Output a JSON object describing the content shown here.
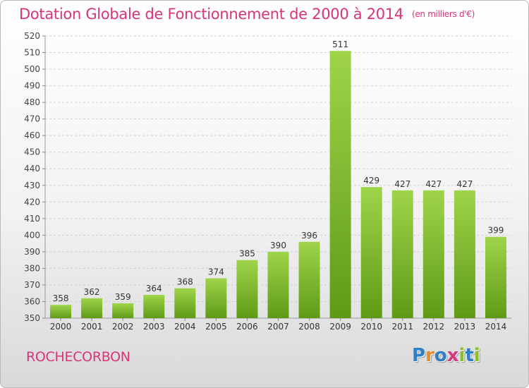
{
  "title": "Dotation Globale de Fonctionnement de 2000 à 2014",
  "unit_note": "(en milliers d'€)",
  "commune": "ROCHECORBON",
  "logo": {
    "letters": [
      "P",
      "r",
      "o",
      "x",
      "i",
      "t",
      "i"
    ],
    "colors": [
      "#2f7fc4",
      "#e8892b",
      "#2f7fc4",
      "#d33a7e",
      "#8cbd2f",
      "#2f7fc4",
      "#8cbd2f"
    ]
  },
  "colors": {
    "accent": "#d9337a",
    "bar_light": "#9fd44a",
    "bar_dark": "#5f9a17"
  },
  "chart_data": {
    "type": "bar",
    "categories": [
      "2000",
      "2001",
      "2002",
      "2003",
      "2004",
      "2005",
      "2006",
      "2007",
      "2008",
      "2009",
      "2010",
      "2011",
      "2012",
      "2013",
      "2014"
    ],
    "values": [
      358,
      362,
      359,
      364,
      368,
      374,
      385,
      390,
      396,
      511,
      429,
      427,
      427,
      427,
      399
    ],
    "ylim": [
      350,
      520
    ],
    "yticks": [
      350,
      360,
      370,
      380,
      390,
      400,
      410,
      420,
      430,
      440,
      450,
      460,
      470,
      480,
      490,
      500,
      510,
      520
    ],
    "grid": true,
    "xlabel": "",
    "ylabel": ""
  }
}
